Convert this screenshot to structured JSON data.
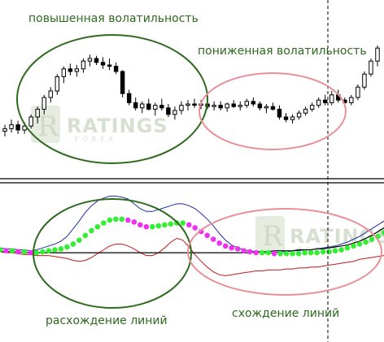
{
  "annotations": {
    "high_volatility": "повышенная волатильность",
    "low_volatility": "пониженная волатильность",
    "divergence": "расхождение линий",
    "convergence": "схождение линий"
  },
  "watermark": {
    "brand": "RATINGS",
    "sub": "FOREX"
  },
  "colors": {
    "annotation_text": "#2e6b1f",
    "green_ellipse": "#2e6b1f",
    "pink_ellipse": "#e88f98",
    "upper_band": "#1f2fa0",
    "lower_band": "#c21818",
    "middle_dot_a": "#ee33ee",
    "middle_dot_b": "#33ee33",
    "indicator_line": "#000000"
  },
  "chart_data": [
    {
      "type": "candlestick",
      "title": "",
      "xlabel": "",
      "ylabel": "",
      "ylim": [
        0,
        100
      ],
      "grid": false,
      "candles": [
        {
          "o": 24,
          "h": 29,
          "l": 20,
          "c": 26
        },
        {
          "o": 26,
          "h": 33,
          "l": 23,
          "c": 29
        },
        {
          "o": 29,
          "h": 32,
          "l": 22,
          "c": 25
        },
        {
          "o": 25,
          "h": 31,
          "l": 22,
          "c": 28
        },
        {
          "o": 28,
          "h": 37,
          "l": 26,
          "c": 35
        },
        {
          "o": 35,
          "h": 43,
          "l": 30,
          "c": 41
        },
        {
          "o": 41,
          "h": 52,
          "l": 37,
          "c": 50
        },
        {
          "o": 50,
          "h": 58,
          "l": 46,
          "c": 55
        },
        {
          "o": 55,
          "h": 68,
          "l": 52,
          "c": 66
        },
        {
          "o": 66,
          "h": 74,
          "l": 61,
          "c": 72
        },
        {
          "o": 72,
          "h": 76,
          "l": 67,
          "c": 70
        },
        {
          "o": 70,
          "h": 75,
          "l": 66,
          "c": 72
        },
        {
          "o": 72,
          "h": 80,
          "l": 69,
          "c": 78
        },
        {
          "o": 78,
          "h": 83,
          "l": 74,
          "c": 80
        },
        {
          "o": 80,
          "h": 82,
          "l": 75,
          "c": 77
        },
        {
          "o": 77,
          "h": 81,
          "l": 72,
          "c": 75
        },
        {
          "o": 75,
          "h": 80,
          "l": 71,
          "c": 74
        },
        {
          "o": 74,
          "h": 77,
          "l": 68,
          "c": 70
        },
        {
          "o": 70,
          "h": 71,
          "l": 50,
          "c": 53
        },
        {
          "o": 53,
          "h": 56,
          "l": 44,
          "c": 46
        },
        {
          "o": 46,
          "h": 50,
          "l": 40,
          "c": 42
        },
        {
          "o": 42,
          "h": 47,
          "l": 38,
          "c": 45
        },
        {
          "o": 45,
          "h": 49,
          "l": 40,
          "c": 41
        },
        {
          "o": 41,
          "h": 46,
          "l": 36,
          "c": 44
        },
        {
          "o": 44,
          "h": 49,
          "l": 40,
          "c": 42
        },
        {
          "o": 42,
          "h": 45,
          "l": 35,
          "c": 37
        },
        {
          "o": 37,
          "h": 43,
          "l": 33,
          "c": 40
        },
        {
          "o": 40,
          "h": 47,
          "l": 37,
          "c": 44
        },
        {
          "o": 44,
          "h": 48,
          "l": 40,
          "c": 45
        },
        {
          "o": 45,
          "h": 49,
          "l": 42,
          "c": 44
        },
        {
          "o": 44,
          "h": 48,
          "l": 41,
          "c": 45
        },
        {
          "o": 45,
          "h": 48,
          "l": 41,
          "c": 43
        },
        {
          "o": 43,
          "h": 47,
          "l": 40,
          "c": 44
        },
        {
          "o": 44,
          "h": 47,
          "l": 40,
          "c": 42
        },
        {
          "o": 42,
          "h": 46,
          "l": 39,
          "c": 45
        },
        {
          "o": 45,
          "h": 48,
          "l": 42,
          "c": 43
        },
        {
          "o": 43,
          "h": 47,
          "l": 40,
          "c": 44
        },
        {
          "o": 44,
          "h": 49,
          "l": 42,
          "c": 47
        },
        {
          "o": 47,
          "h": 50,
          "l": 43,
          "c": 45
        },
        {
          "o": 45,
          "h": 47,
          "l": 40,
          "c": 42
        },
        {
          "o": 42,
          "h": 45,
          "l": 38,
          "c": 43
        },
        {
          "o": 43,
          "h": 46,
          "l": 40,
          "c": 41
        },
        {
          "o": 41,
          "h": 44,
          "l": 33,
          "c": 35
        },
        {
          "o": 35,
          "h": 38,
          "l": 31,
          "c": 33
        },
        {
          "o": 33,
          "h": 37,
          "l": 30,
          "c": 35
        },
        {
          "o": 35,
          "h": 40,
          "l": 33,
          "c": 38
        },
        {
          "o": 38,
          "h": 43,
          "l": 36,
          "c": 41
        },
        {
          "o": 41,
          "h": 46,
          "l": 39,
          "c": 44
        },
        {
          "o": 44,
          "h": 50,
          "l": 42,
          "c": 48
        },
        {
          "o": 48,
          "h": 52,
          "l": 44,
          "c": 46
        },
        {
          "o": 46,
          "h": 55,
          "l": 44,
          "c": 52
        },
        {
          "o": 52,
          "h": 56,
          "l": 46,
          "c": 48
        },
        {
          "o": 48,
          "h": 50,
          "l": 43,
          "c": 46
        },
        {
          "o": 46,
          "h": 52,
          "l": 44,
          "c": 50
        },
        {
          "o": 50,
          "h": 60,
          "l": 48,
          "c": 58
        },
        {
          "o": 58,
          "h": 70,
          "l": 56,
          "c": 68
        },
        {
          "o": 68,
          "h": 80,
          "l": 66,
          "c": 78
        },
        {
          "o": 78,
          "h": 90,
          "l": 74,
          "c": 88
        }
      ]
    },
    {
      "type": "line",
      "title": "",
      "xlabel": "",
      "ylabel": "",
      "ylim": [
        0,
        100
      ],
      "grid": false,
      "series": [
        {
          "values": [
            38,
            37,
            37,
            36,
            36,
            35,
            36,
            38,
            40,
            42,
            45,
            50,
            58,
            66,
            75,
            82,
            87,
            90,
            92,
            92,
            91,
            89,
            84,
            79,
            76,
            76,
            78,
            80,
            82,
            84,
            84,
            82,
            79,
            74,
            68,
            61,
            53,
            46,
            41,
            38,
            36,
            35,
            34,
            33,
            33,
            33,
            34,
            34,
            35,
            35,
            36,
            36,
            37,
            38,
            39,
            40,
            42,
            44,
            47,
            50,
            54,
            58,
            62,
            66
          ]
        },
        {
          "values": [
            34,
            33,
            33,
            32,
            31,
            31,
            30,
            30,
            30,
            29,
            28,
            27,
            25,
            24,
            25,
            28,
            32,
            36,
            40,
            42,
            42,
            40,
            37,
            33,
            30,
            30,
            33,
            38,
            44,
            48,
            46,
            39,
            31,
            24,
            18,
            13,
            10,
            9,
            10,
            11,
            12,
            13,
            14,
            14,
            15,
            15,
            15,
            16,
            16,
            17,
            17,
            18,
            18,
            19,
            20,
            21,
            22,
            23,
            24,
            26,
            27,
            28,
            29,
            30
          ]
        },
        {
          "values": [
            36,
            35,
            35,
            34,
            34,
            33,
            33,
            34,
            35,
            36,
            37,
            39,
            42,
            46,
            51,
            56,
            60,
            64,
            67,
            68,
            68,
            67,
            65,
            62,
            60,
            60,
            61,
            62,
            63,
            64,
            64,
            62,
            59,
            55,
            51,
            47,
            43,
            40,
            38,
            37,
            35,
            34,
            33,
            33,
            33,
            32,
            32,
            32,
            32,
            32,
            33,
            33,
            33,
            34,
            34,
            35,
            36,
            38,
            40,
            42,
            44,
            47,
            50,
            54
          ]
        },
        {
          "values": [
            34,
            34,
            34,
            34,
            33,
            33,
            33,
            33,
            33,
            33,
            33,
            33,
            33,
            33,
            33,
            33,
            33,
            33,
            33,
            33,
            33,
            33,
            33,
            33,
            33,
            33,
            33,
            33,
            33,
            33,
            33,
            33,
            33,
            33,
            33,
            33,
            33,
            33,
            33,
            33,
            33,
            33,
            34,
            34,
            34,
            35,
            35,
            35,
            35,
            36,
            36,
            36,
            37,
            37,
            38,
            39,
            40,
            41,
            43,
            45,
            48,
            51,
            55,
            59
          ]
        }
      ]
    }
  ]
}
